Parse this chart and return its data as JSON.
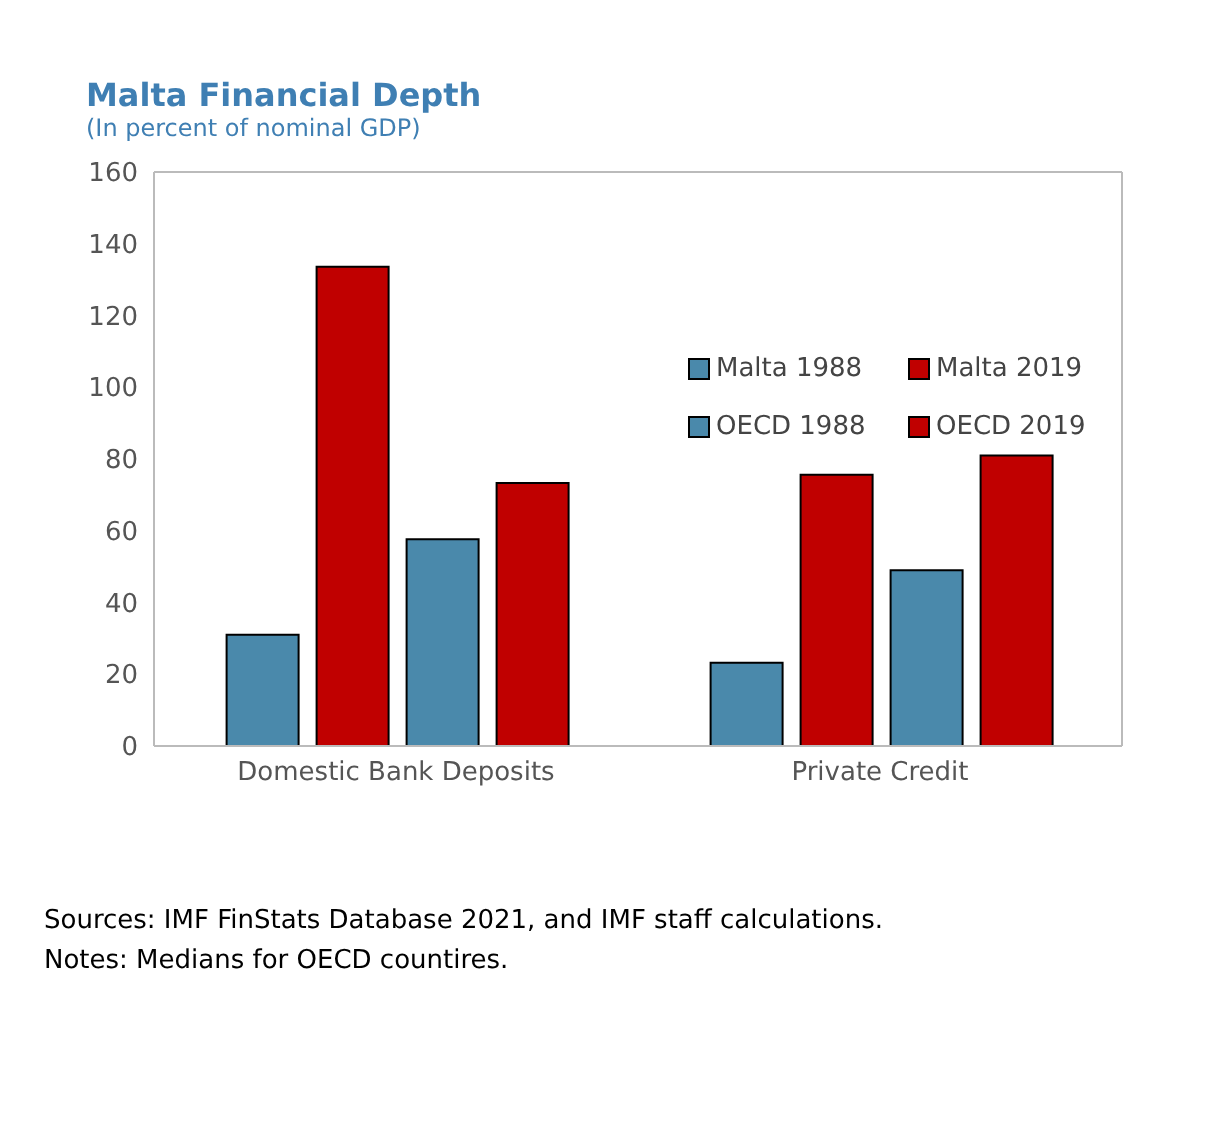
{
  "chart_data": {
    "type": "bar",
    "title": "Malta Financial Depth",
    "subtitle": "(In percent of nominal GDP)",
    "categories": [
      "Domestic Bank Deposits",
      "Private Credit"
    ],
    "series": [
      {
        "name": "Malta 1988",
        "color": "#4a89ab",
        "values": [
          31.0,
          23.2
        ]
      },
      {
        "name": "Malta 2019",
        "color": "#c00000",
        "values": [
          133.6,
          75.6
        ]
      },
      {
        "name": "OECD 1988",
        "color": "#4a89ab",
        "values": [
          57.6,
          49.0
        ]
      },
      {
        "name": "OECD 2019",
        "color": "#c00000",
        "values": [
          73.3,
          81.0
        ]
      }
    ],
    "ylim": [
      0,
      160
    ],
    "yticks": [
      0,
      20,
      40,
      60,
      80,
      100,
      120,
      140,
      160
    ],
    "grid": false,
    "legend": "top right",
    "annotations": [
      "Sources: IMF FinStats Database 2021, and IMF staff calculations.",
      "Notes: Medians for OECD countires."
    ]
  }
}
